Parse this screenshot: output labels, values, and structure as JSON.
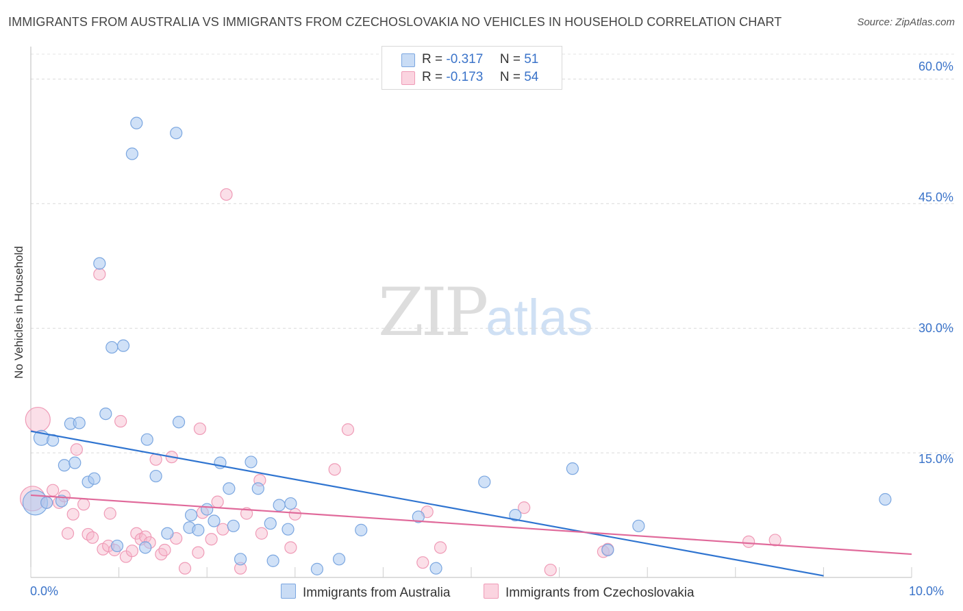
{
  "title": "IMMIGRANTS FROM AUSTRALIA VS IMMIGRANTS FROM CZECHOSLOVAKIA NO VEHICLES IN HOUSEHOLD CORRELATION CHART",
  "source": "Source: ZipAtlas.com",
  "watermark": {
    "zip": "ZIP",
    "atlas": "atlas"
  },
  "legend": {
    "r_label": "R =",
    "n_label": "N =",
    "items": [
      {
        "r": "-0.317",
        "n": "51",
        "color": "#a9c8f0"
      },
      {
        "r": "-0.173",
        "n": "54",
        "color": "#f7b9cc"
      }
    ]
  },
  "chart_data": {
    "type": "scatter",
    "title": "IMMIGRANTS FROM AUSTRALIA VS IMMIGRANTS FROM CZECHOSLOVAKIA NO VEHICLES IN HOUSEHOLD CORRELATION CHART",
    "xlabel": "",
    "ylabel": "No Vehicles in Household",
    "xlim": [
      0,
      10
    ],
    "ylim": [
      0,
      63
    ],
    "x_tick_labels": [
      "0.0%",
      "10.0%"
    ],
    "y_ticks": [
      15,
      30,
      45,
      60
    ],
    "y_tick_labels": [
      "15.0%",
      "30.0%",
      "45.0%",
      "60.0%"
    ],
    "grid": true,
    "legend_position": "top-center",
    "series": [
      {
        "name": "Immigrants from Australia",
        "color": "#a9c8f0",
        "line_color": "#2f74d0",
        "trend": [
          [
            0,
            17.6
          ],
          [
            9.0,
            0.2
          ]
        ],
        "points": [
          [
            0.05,
            9.0
          ],
          [
            0.12,
            16.8
          ],
          [
            0.18,
            9.0
          ],
          [
            0.25,
            16.5
          ],
          [
            0.35,
            9.2
          ],
          [
            0.38,
            13.5
          ],
          [
            0.45,
            18.5
          ],
          [
            0.5,
            13.8
          ],
          [
            0.55,
            18.6
          ],
          [
            0.65,
            11.5
          ],
          [
            0.72,
            11.9
          ],
          [
            0.78,
            37.8
          ],
          [
            0.85,
            19.7
          ],
          [
            0.92,
            27.7
          ],
          [
            0.98,
            3.8
          ],
          [
            1.05,
            27.9
          ],
          [
            1.15,
            51.0
          ],
          [
            1.2,
            54.7
          ],
          [
            1.3,
            3.6
          ],
          [
            1.32,
            16.6
          ],
          [
            1.42,
            12.2
          ],
          [
            1.55,
            5.3
          ],
          [
            1.65,
            53.5
          ],
          [
            1.68,
            18.7
          ],
          [
            1.8,
            6.0
          ],
          [
            1.82,
            7.5
          ],
          [
            1.9,
            5.7
          ],
          [
            2.0,
            8.2
          ],
          [
            2.08,
            6.8
          ],
          [
            2.15,
            13.8
          ],
          [
            2.25,
            10.7
          ],
          [
            2.3,
            6.2
          ],
          [
            2.38,
            2.2
          ],
          [
            2.5,
            13.9
          ],
          [
            2.58,
            10.7
          ],
          [
            2.72,
            6.5
          ],
          [
            2.75,
            2.0
          ],
          [
            2.82,
            8.7
          ],
          [
            2.92,
            5.8
          ],
          [
            2.95,
            8.9
          ],
          [
            3.25,
            1.0
          ],
          [
            3.5,
            2.2
          ],
          [
            3.75,
            5.7
          ],
          [
            4.4,
            7.3
          ],
          [
            4.6,
            1.1
          ],
          [
            5.15,
            11.5
          ],
          [
            5.5,
            7.5
          ],
          [
            6.15,
            13.1
          ],
          [
            6.55,
            3.3
          ],
          [
            6.9,
            6.2
          ],
          [
            9.7,
            9.4
          ]
        ]
      },
      {
        "name": "Immigrants from Czechoslovakia",
        "color": "#f7b9cc",
        "line_color": "#e0699a",
        "trend": [
          [
            0,
            9.9
          ],
          [
            10.0,
            2.8
          ]
        ],
        "points": [
          [
            0.02,
            9.5
          ],
          [
            0.08,
            19.0
          ],
          [
            0.18,
            9.0
          ],
          [
            0.25,
            10.5
          ],
          [
            0.32,
            9.0
          ],
          [
            0.38,
            9.8
          ],
          [
            0.42,
            5.3
          ],
          [
            0.48,
            7.6
          ],
          [
            0.52,
            15.4
          ],
          [
            0.6,
            8.8
          ],
          [
            0.65,
            5.2
          ],
          [
            0.7,
            4.8
          ],
          [
            0.78,
            36.5
          ],
          [
            0.82,
            3.4
          ],
          [
            0.88,
            3.8
          ],
          [
            0.9,
            7.7
          ],
          [
            0.95,
            3.3
          ],
          [
            1.02,
            18.8
          ],
          [
            1.08,
            2.5
          ],
          [
            1.15,
            3.2
          ],
          [
            1.2,
            5.3
          ],
          [
            1.25,
            4.6
          ],
          [
            1.3,
            4.9
          ],
          [
            1.35,
            4.2
          ],
          [
            1.42,
            14.2
          ],
          [
            1.48,
            2.8
          ],
          [
            1.52,
            3.3
          ],
          [
            1.6,
            14.5
          ],
          [
            1.65,
            4.7
          ],
          [
            1.75,
            1.1
          ],
          [
            1.9,
            3.0
          ],
          [
            1.92,
            17.9
          ],
          [
            1.95,
            7.8
          ],
          [
            2.05,
            4.6
          ],
          [
            2.12,
            9.1
          ],
          [
            2.18,
            5.8
          ],
          [
            2.22,
            46.1
          ],
          [
            2.38,
            1.1
          ],
          [
            2.45,
            7.7
          ],
          [
            2.6,
            11.7
          ],
          [
            2.62,
            5.3
          ],
          [
            2.95,
            3.6
          ],
          [
            3.0,
            7.6
          ],
          [
            3.45,
            13.0
          ],
          [
            3.6,
            17.8
          ],
          [
            4.45,
            1.8
          ],
          [
            4.5,
            7.9
          ],
          [
            4.65,
            3.6
          ],
          [
            5.6,
            8.4
          ],
          [
            5.9,
            0.9
          ],
          [
            6.5,
            3.1
          ],
          [
            6.55,
            3.4
          ],
          [
            8.15,
            4.3
          ],
          [
            8.45,
            4.5
          ]
        ]
      }
    ]
  }
}
